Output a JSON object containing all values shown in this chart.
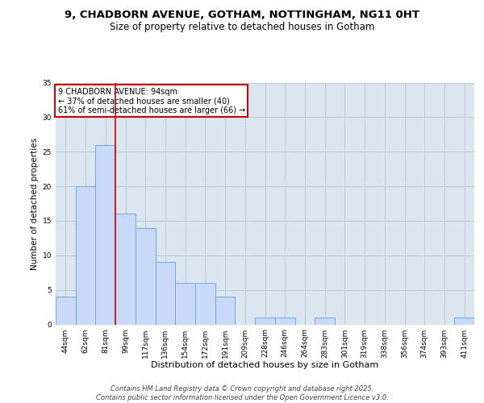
{
  "title_line1": "9, CHADBORN AVENUE, GOTHAM, NOTTINGHAM, NG11 0HT",
  "title_line2": "Size of property relative to detached houses in Gotham",
  "xlabel": "Distribution of detached houses by size in Gotham",
  "ylabel": "Number of detached properties",
  "categories": [
    "44sqm",
    "62sqm",
    "81sqm",
    "99sqm",
    "117sqm",
    "136sqm",
    "154sqm",
    "172sqm",
    "191sqm",
    "209sqm",
    "228sqm",
    "246sqm",
    "264sqm",
    "283sqm",
    "301sqm",
    "319sqm",
    "338sqm",
    "356sqm",
    "374sqm",
    "393sqm",
    "411sqm"
  ],
  "values": [
    4,
    20,
    26,
    16,
    14,
    9,
    6,
    6,
    4,
    0,
    1,
    1,
    0,
    1,
    0,
    0,
    0,
    0,
    0,
    0,
    1
  ],
  "bar_color": "#c9daf8",
  "bar_edge_color": "#6fa8dc",
  "red_line_x": 2.5,
  "annotation_title": "9 CHADBORN AVENUE: 94sqm",
  "annotation_line1": "← 37% of detached houses are smaller (40)",
  "annotation_line2": "61% of semi-detached houses are larger (66) →",
  "annotation_box_color": "#ffffff",
  "annotation_box_edge_color": "#cc0000",
  "ylim": [
    0,
    35
  ],
  "yticks": [
    0,
    5,
    10,
    15,
    20,
    25,
    30,
    35
  ],
  "grid_color": "#c0c8d8",
  "background_color": "#dce6f1",
  "footer_line1": "Contains HM Land Registry data © Crown copyright and database right 2025.",
  "footer_line2": "Contains public sector information licensed under the Open Government Licence v3.0.",
  "title_fontsize": 9.5,
  "subtitle_fontsize": 8.5,
  "xlabel_fontsize": 8,
  "ylabel_fontsize": 7.5,
  "tick_fontsize": 6.5,
  "footer_fontsize": 6,
  "annotation_fontsize": 7
}
